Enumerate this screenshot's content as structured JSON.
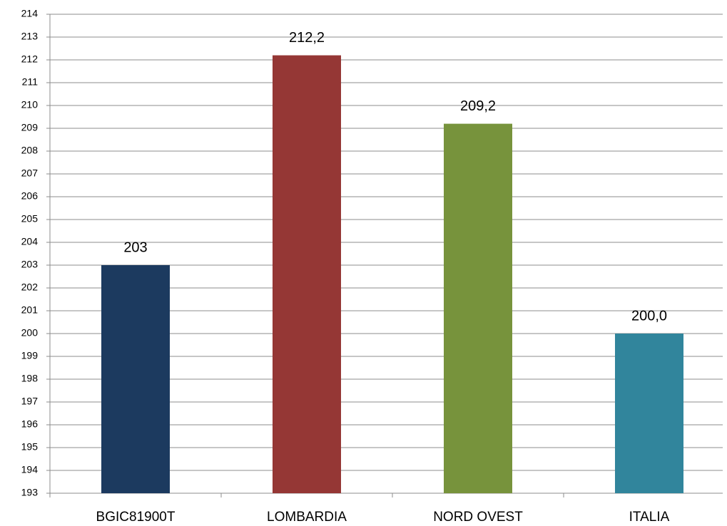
{
  "chart_data": {
    "type": "bar",
    "categories": [
      "BGIC81900T",
      "LOMBARDIA",
      "NORD OVEST",
      "ITALIA"
    ],
    "values": [
      203,
      212.2,
      209.2,
      200.0
    ],
    "value_labels": [
      "203",
      "212,2",
      "209,2",
      "200,0"
    ],
    "colors": [
      "#1c3a5f",
      "#953735",
      "#77933c",
      "#31859c"
    ],
    "ylim": [
      193,
      214
    ],
    "yticks": [
      193,
      194,
      195,
      196,
      197,
      198,
      199,
      200,
      201,
      202,
      203,
      204,
      205,
      206,
      207,
      208,
      209,
      210,
      211,
      212,
      213,
      214
    ],
    "grid": true
  }
}
